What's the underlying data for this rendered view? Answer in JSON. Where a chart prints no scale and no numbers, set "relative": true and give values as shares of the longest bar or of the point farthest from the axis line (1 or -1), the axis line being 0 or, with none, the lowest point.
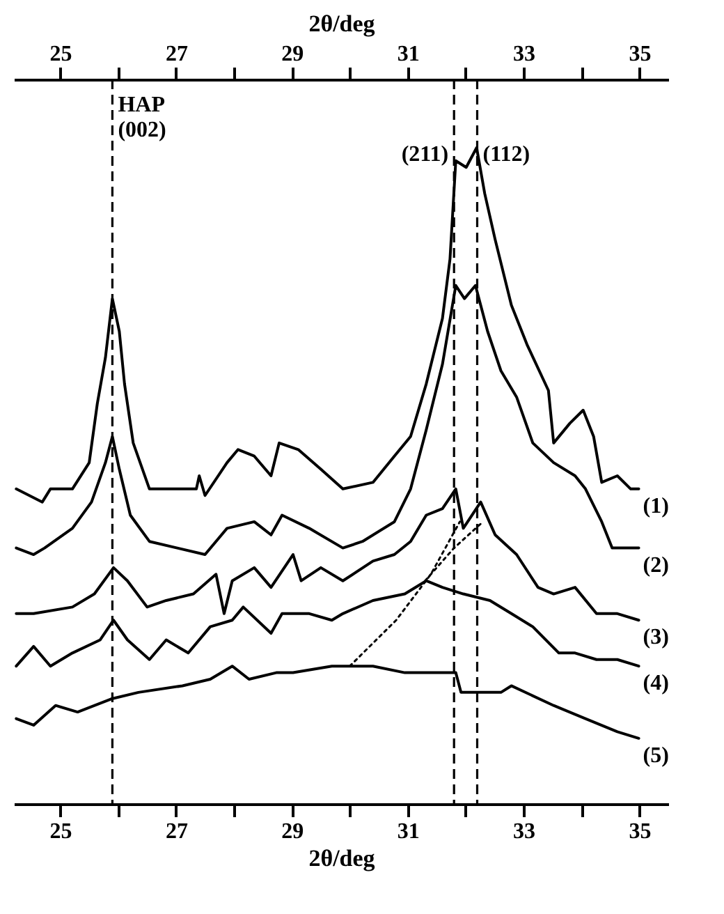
{
  "chart_data": {
    "type": "line",
    "relative": true,
    "line_style": "solid",
    "xlabel": "2θ/deg",
    "x2label": "2θ/deg",
    "xlim": [
      24.2,
      35.5
    ],
    "x2lim": [
      24.2,
      35.5
    ],
    "xticks": [
      25,
      {
        "value": 26,
        "label": null
      },
      27,
      {
        "value": 28,
        "label": null
      },
      29,
      {
        "value": 30,
        "label": null
      },
      31,
      {
        "value": 32,
        "label": null
      },
      33,
      {
        "value": 34,
        "label": null
      },
      35
    ],
    "x2ticks": [
      25,
      {
        "value": 26,
        "label": null
      },
      27,
      {
        "value": 28,
        "label": null
      },
      29,
      {
        "value": 30,
        "label": null
      },
      31,
      {
        "value": 32,
        "label": null
      },
      33,
      {
        "value": 34,
        "label": null
      },
      35
    ],
    "series": [
      {
        "name": "(1)",
        "color": "#000000",
        "x": [
          24.24,
          24.69,
          24.83,
          25.21,
          25.5,
          25.64,
          25.78,
          25.9,
          26.02,
          26.11,
          26.26,
          26.54,
          26.83,
          27.35,
          27.4,
          27.5,
          27.88,
          28.07,
          28.35,
          28.64,
          28.78,
          29.11,
          29.5,
          29.88,
          30.4,
          30.77,
          31.05,
          31.32,
          31.6,
          31.73,
          31.83,
          32.01,
          32.19,
          32.33,
          32.51,
          32.79,
          33.06,
          33.43,
          33.52,
          33.8,
          34.03,
          34.21,
          34.35,
          34.62,
          34.85,
          34.99
        ],
        "values": [
          0.48,
          0.46,
          0.48,
          0.48,
          0.52,
          0.61,
          0.68,
          0.77,
          0.72,
          0.64,
          0.55,
          0.48,
          0.48,
          0.48,
          0.5,
          0.47,
          0.52,
          0.54,
          0.53,
          0.5,
          0.55,
          0.54,
          0.51,
          0.48,
          0.49,
          0.53,
          0.56,
          0.64,
          0.74,
          0.83,
          0.98,
          0.97,
          1.0,
          0.93,
          0.86,
          0.76,
          0.7,
          0.63,
          0.55,
          0.58,
          0.6,
          0.56,
          0.49,
          0.5,
          0.48,
          0.48
        ]
      },
      {
        "name": "(2)",
        "color": "#000000",
        "x": [
          24.24,
          24.54,
          24.73,
          25.21,
          25.54,
          25.78,
          25.9,
          26.02,
          26.21,
          26.54,
          27.02,
          27.5,
          27.88,
          28.35,
          28.64,
          28.83,
          29.3,
          29.88,
          30.22,
          30.77,
          31.05,
          31.32,
          31.6,
          31.83,
          31.98,
          32.17,
          32.38,
          32.61,
          32.88,
          33.16,
          33.52,
          33.89,
          34.07,
          34.35,
          34.53,
          34.85,
          34.99
        ],
        "values": [
          0.39,
          0.38,
          0.39,
          0.42,
          0.46,
          0.52,
          0.56,
          0.51,
          0.44,
          0.4,
          0.39,
          0.38,
          0.42,
          0.43,
          0.41,
          0.44,
          0.42,
          0.39,
          0.4,
          0.43,
          0.48,
          0.57,
          0.67,
          0.79,
          0.77,
          0.79,
          0.72,
          0.66,
          0.62,
          0.55,
          0.52,
          0.5,
          0.48,
          0.43,
          0.39,
          0.39,
          0.39
        ]
      },
      {
        "name": "(3)",
        "color": "#000000",
        "x": [
          24.24,
          24.54,
          25.21,
          25.59,
          25.92,
          26.16,
          26.5,
          26.83,
          27.3,
          27.69,
          27.83,
          27.97,
          28.35,
          28.64,
          29.02,
          29.16,
          29.5,
          29.88,
          30.4,
          30.77,
          31.05,
          31.32,
          31.6,
          31.83,
          31.96,
          32.26,
          32.51,
          32.88,
          33.25,
          33.52,
          33.89,
          34.26,
          34.62,
          34.99
        ],
        "values": [
          0.29,
          0.29,
          0.3,
          0.32,
          0.36,
          0.34,
          0.3,
          0.31,
          0.32,
          0.35,
          0.29,
          0.34,
          0.36,
          0.33,
          0.38,
          0.34,
          0.36,
          0.34,
          0.37,
          0.38,
          0.4,
          0.44,
          0.45,
          0.48,
          0.42,
          0.46,
          0.41,
          0.38,
          0.33,
          0.32,
          0.33,
          0.29,
          0.29,
          0.28
        ]
      },
      {
        "name": "(4)",
        "color": "#000000",
        "x": [
          24.24,
          24.54,
          24.83,
          25.21,
          25.69,
          25.92,
          26.16,
          26.54,
          26.83,
          27.21,
          27.59,
          27.97,
          28.16,
          28.64,
          28.83,
          29.3,
          29.69,
          29.88,
          30.4,
          30.95,
          31.32,
          31.6,
          31.96,
          32.42,
          32.79,
          33.16,
          33.61,
          33.89,
          34.26,
          34.62,
          34.99
        ],
        "values": [
          0.21,
          0.24,
          0.21,
          0.23,
          0.25,
          0.28,
          0.25,
          0.22,
          0.25,
          0.23,
          0.27,
          0.28,
          0.3,
          0.26,
          0.29,
          0.29,
          0.28,
          0.29,
          0.31,
          0.32,
          0.34,
          0.33,
          0.32,
          0.31,
          0.29,
          0.27,
          0.23,
          0.23,
          0.22,
          0.22,
          0.21
        ]
      },
      {
        "name": "(5)",
        "color": "#000000",
        "x": [
          24.24,
          24.54,
          24.92,
          25.3,
          25.88,
          26.35,
          27.11,
          27.59,
          27.97,
          28.26,
          28.73,
          29.02,
          29.69,
          30.4,
          30.95,
          31.83,
          31.92,
          32.61,
          32.79,
          33.52,
          34.07,
          34.62,
          34.99
        ],
        "values": [
          0.13,
          0.12,
          0.15,
          0.14,
          0.16,
          0.17,
          0.18,
          0.19,
          0.21,
          0.19,
          0.2,
          0.2,
          0.21,
          0.21,
          0.2,
          0.2,
          0.17,
          0.17,
          0.18,
          0.15,
          0.13,
          0.11,
          0.1
        ]
      },
      {
        "color": "#000000",
        "line_style": "dotted",
        "x": [
          30.0,
          30.8,
          31.4,
          31.9
        ],
        "values": [
          0.21,
          0.28,
          0.35,
          0.43
        ]
      },
      {
        "color": "#000000",
        "line_style": "dotted",
        "x": [
          31.3,
          31.8,
          32.3
        ],
        "values": [
          0.34,
          0.39,
          0.43
        ]
      }
    ],
    "ref_lines": [
      {
        "axis": "x",
        "value": 25.9,
        "label": "HAP (002)",
        "line_style": "dashed"
      },
      {
        "axis": "x",
        "value": 31.8,
        "line_style": "dashed"
      },
      {
        "axis": "x",
        "value": 32.2,
        "line_style": "dashed"
      }
    ],
    "annotations": [
      {
        "text": "(211)",
        "x": 31.8,
        "y": 0.99
      },
      {
        "text": "(112)",
        "x": 32.2,
        "y": 0.99
      }
    ]
  }
}
